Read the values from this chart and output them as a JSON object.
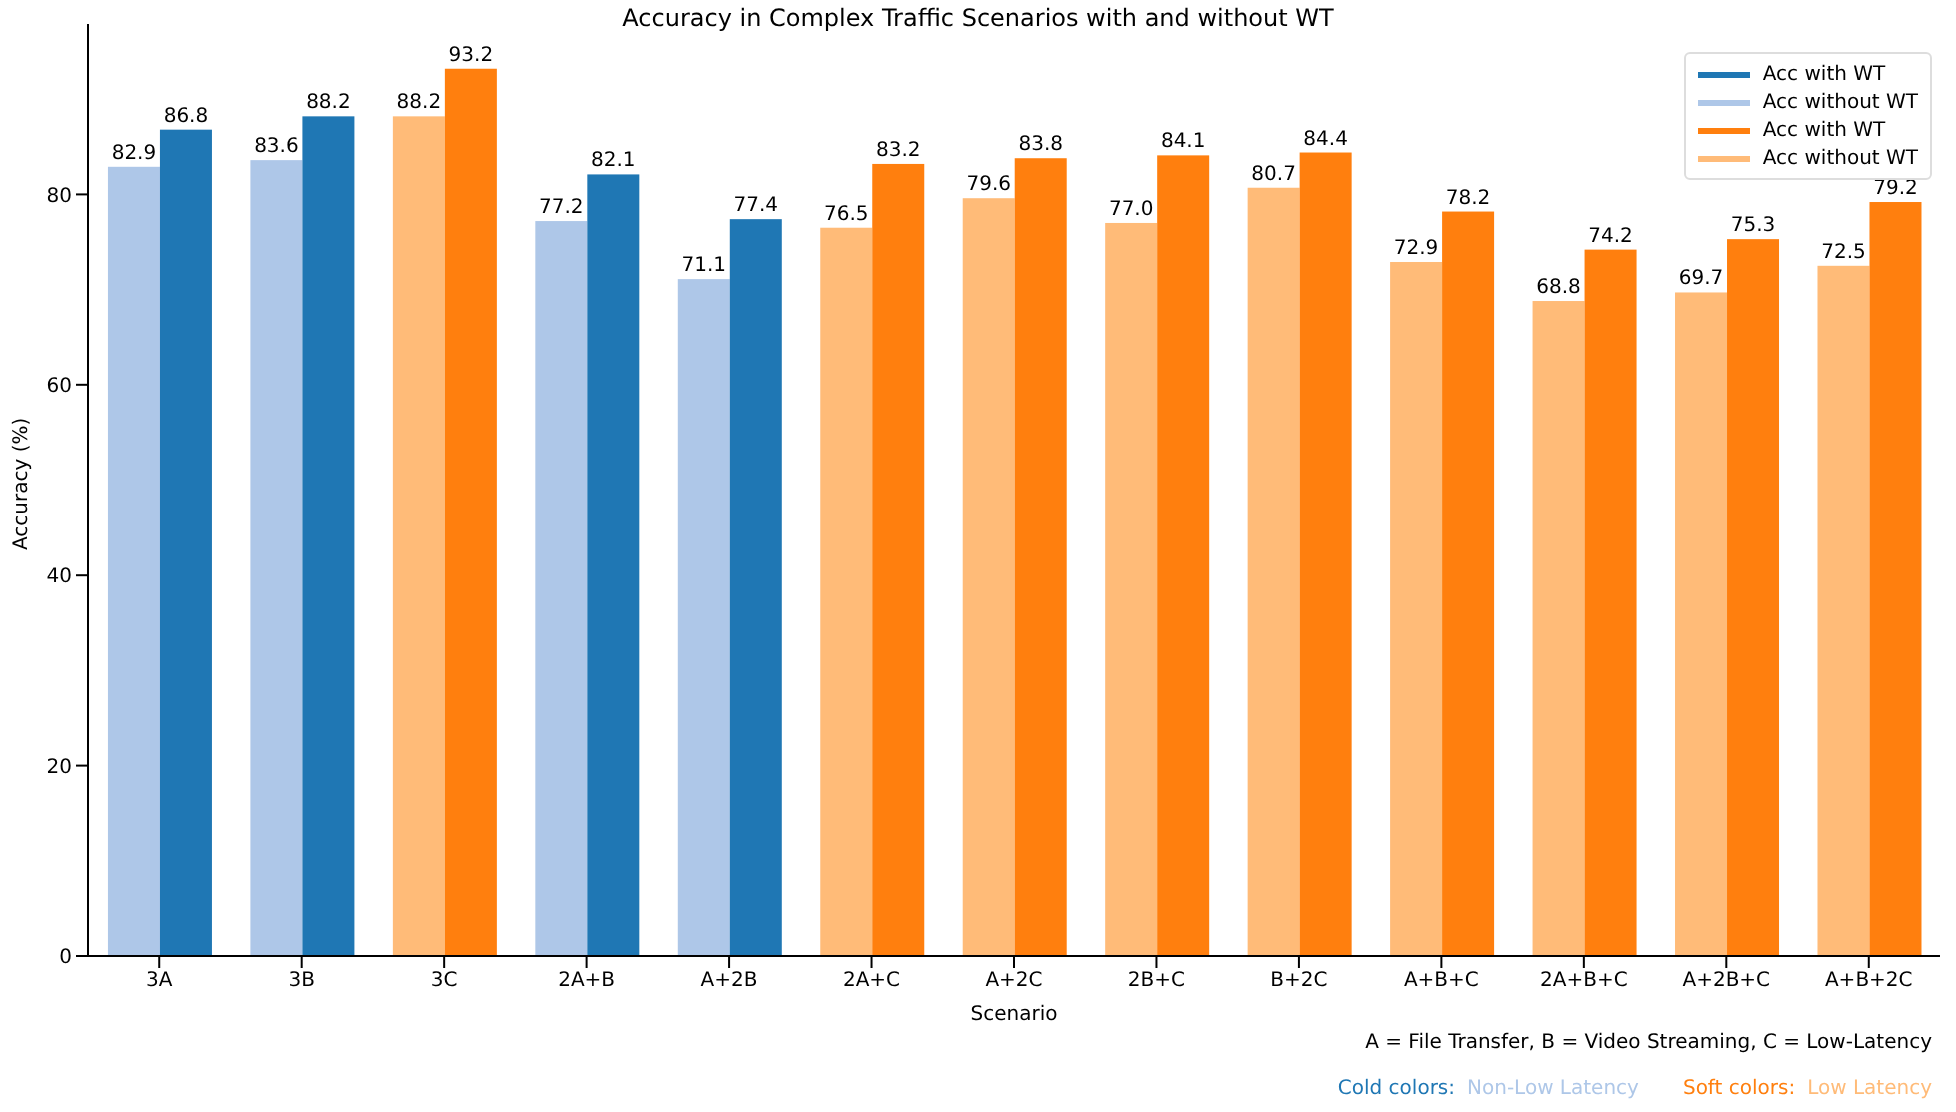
{
  "chart_data": {
    "type": "bar",
    "title": "Accuracy in Complex Traffic Scenarios with and without WT",
    "xlabel": "Scenario",
    "ylabel": "Accuracy (%)",
    "categories": [
      "3A",
      "3B",
      "3C",
      "2A+B",
      "A+2B",
      "2A+C",
      "A+2C",
      "2B+C",
      "B+2C",
      "A+B+C",
      "2A+B+C",
      "A+2B+C",
      "A+B+2C"
    ],
    "series": [
      {
        "name": "Acc with WT",
        "color": "#1f77b4",
        "values": [
          86.8,
          88.2,
          null,
          82.1,
          77.4,
          null,
          null,
          null,
          null,
          null,
          null,
          null,
          null
        ],
        "value_labels": [
          "86.8",
          "88.2",
          null,
          "82.1",
          "77.4",
          null,
          null,
          null,
          null,
          null,
          null,
          null,
          null
        ]
      },
      {
        "name": "Acc without WT",
        "color": "#aec7e8",
        "values": [
          82.9,
          83.6,
          null,
          77.2,
          71.1,
          null,
          null,
          null,
          null,
          null,
          null,
          null,
          null
        ],
        "value_labels": [
          "82.9",
          "83.6",
          null,
          "77.2",
          "71.1",
          null,
          null,
          null,
          null,
          null,
          null,
          null,
          null
        ]
      },
      {
        "name": "Acc with WT",
        "color": "#ff7f0e",
        "values": [
          null,
          null,
          93.2,
          null,
          null,
          83.2,
          83.8,
          84.1,
          84.4,
          78.2,
          74.2,
          75.3,
          79.2
        ],
        "value_labels": [
          null,
          null,
          "93.2",
          null,
          null,
          "83.2",
          "83.8",
          "84.1",
          "84.4",
          "78.2",
          "74.2",
          "75.3",
          "79.2"
        ]
      },
      {
        "name": "Acc without WT",
        "color": "#ffbb78",
        "values": [
          null,
          null,
          88.2,
          null,
          null,
          76.5,
          79.6,
          77.0,
          80.7,
          72.9,
          68.8,
          69.7,
          72.5
        ],
        "value_labels": [
          null,
          null,
          "88.2",
          null,
          null,
          "76.5",
          "79.6",
          "77.0",
          "80.7",
          "72.9",
          "68.8",
          "69.7",
          "72.5"
        ]
      }
    ],
    "ylim": [
      0,
      97.9
    ],
    "yticks": [
      0,
      20,
      40,
      60,
      80
    ],
    "legend": "top right",
    "annotations": [
      "A = File Transfer, B = Video Streaming, C = Low-Latency",
      "Cold colors:",
      "Non-Low Latency",
      "Soft colors:",
      "Low Latency"
    ]
  }
}
